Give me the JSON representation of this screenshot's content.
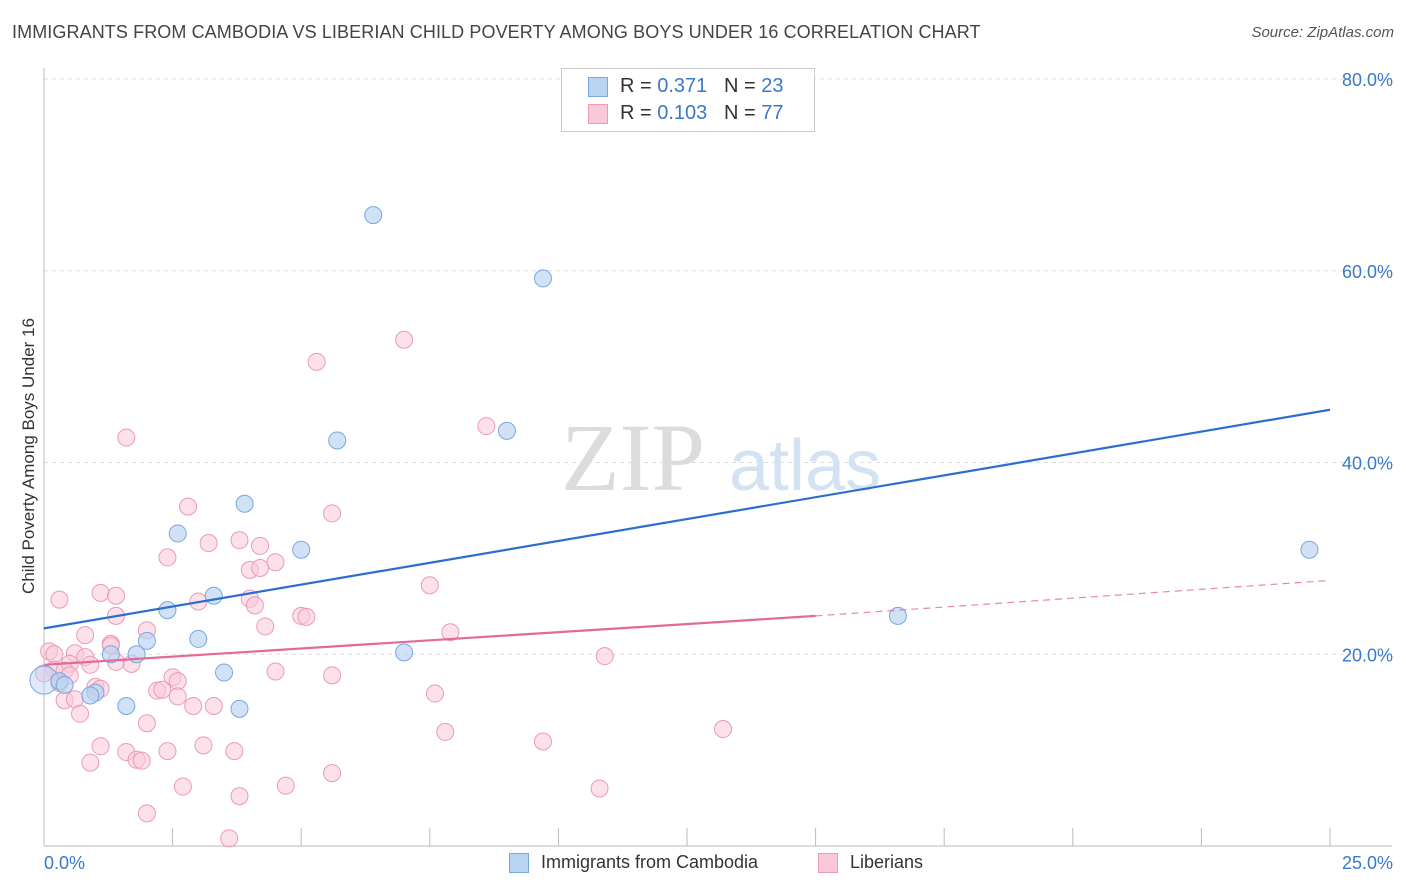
{
  "title": "IMMIGRANTS FROM CAMBODIA VS LIBERIAN CHILD POVERTY AMONG BOYS UNDER 16 CORRELATION CHART",
  "source": "Source: ZipAtlas.com",
  "watermark": {
    "zip": "ZIP",
    "atlas": "atlas"
  },
  "colors": {
    "blue_fill": "#b9d3f3",
    "blue_stroke": "#7aa7dd",
    "blue_line": "#2a6fcf",
    "pink_fill": "#f9c9d8",
    "pink_stroke": "#ec9ab5",
    "pink_line": "#e46a96",
    "tick_text": "#3a78c9"
  },
  "legend": {
    "rows": [
      {
        "r_label": "R = ",
        "r_value": "0.371",
        "n_label": "N = ",
        "n_value": "23"
      },
      {
        "r_label": "R = ",
        "r_value": "0.103",
        "n_label": "N = ",
        "n_value": "77"
      }
    ]
  },
  "bottom_legend": [
    "Immigrants from Cambodia",
    "Liberians"
  ],
  "chart_data": {
    "type": "scatter",
    "title": "IMMIGRANTS FROM CAMBODIA VS LIBERIAN CHILD POVERTY AMONG BOYS UNDER 16 CORRELATION CHART",
    "xlabel": "",
    "ylabel": "Child Poverty Among Boys Under 16",
    "xlim": [
      0,
      25
    ],
    "ylim": [
      0,
      80
    ],
    "x_tick_labels": [
      "0.0%",
      "25.0%"
    ],
    "y_ticks": [
      20,
      40,
      60,
      80
    ],
    "y_tick_labels": [
      "20.0%",
      "40.0%",
      "60.0%",
      "80.0%"
    ],
    "grid": "horizontal dashed",
    "legend_position": "top-center",
    "series": [
      {
        "name": "Immigrants from Cambodia",
        "points": [
          [
            6.4,
            65.8
          ],
          [
            9.7,
            59.2
          ],
          [
            5.7,
            42.3
          ],
          [
            9.0,
            43.3
          ],
          [
            3.9,
            35.7
          ],
          [
            2.6,
            32.6
          ],
          [
            5.0,
            30.9
          ],
          [
            24.6,
            30.9
          ],
          [
            3.3,
            26.1
          ],
          [
            2.4,
            24.6
          ],
          [
            16.6,
            24.0
          ],
          [
            2.0,
            21.4
          ],
          [
            3.0,
            21.6
          ],
          [
            7.0,
            20.2
          ],
          [
            1.3,
            20.0
          ],
          [
            1.8,
            20.0
          ],
          [
            3.5,
            18.1
          ],
          [
            0.3,
            17.2
          ],
          [
            0.4,
            16.8
          ],
          [
            1.0,
            16.0
          ],
          [
            0.9,
            15.7
          ],
          [
            1.6,
            14.6
          ],
          [
            3.8,
            14.3
          ]
        ],
        "trend": {
          "x": [
            0,
            25
          ],
          "y": [
            22.7,
            45.5
          ]
        }
      },
      {
        "name": "Liberians",
        "points": [
          [
            7.0,
            52.8
          ],
          [
            5.3,
            50.5
          ],
          [
            8.6,
            43.8
          ],
          [
            1.6,
            42.6
          ],
          [
            2.8,
            35.4
          ],
          [
            5.6,
            34.7
          ],
          [
            3.2,
            31.6
          ],
          [
            3.8,
            31.9
          ],
          [
            4.2,
            31.3
          ],
          [
            2.4,
            30.1
          ],
          [
            4.5,
            29.6
          ],
          [
            4.0,
            28.8
          ],
          [
            4.2,
            29.0
          ],
          [
            7.5,
            27.2
          ],
          [
            1.1,
            26.4
          ],
          [
            1.4,
            26.1
          ],
          [
            0.3,
            25.7
          ],
          [
            3.0,
            25.5
          ],
          [
            4.0,
            25.8
          ],
          [
            4.1,
            25.1
          ],
          [
            5.0,
            24.0
          ],
          [
            5.1,
            23.9
          ],
          [
            1.4,
            24.0
          ],
          [
            4.3,
            22.9
          ],
          [
            2.0,
            22.5
          ],
          [
            7.9,
            22.3
          ],
          [
            0.8,
            22.0
          ],
          [
            1.3,
            21.1
          ],
          [
            1.3,
            20.9
          ],
          [
            0.1,
            20.3
          ],
          [
            0.2,
            20.0
          ],
          [
            0.6,
            20.1
          ],
          [
            0.8,
            19.7
          ],
          [
            1.4,
            19.2
          ],
          [
            1.7,
            19.0
          ],
          [
            0.5,
            19.0
          ],
          [
            0.9,
            18.9
          ],
          [
            10.9,
            19.8
          ],
          [
            0.2,
            18.4
          ],
          [
            0.4,
            18.3
          ],
          [
            0.5,
            17.8
          ],
          [
            4.5,
            18.2
          ],
          [
            5.6,
            17.8
          ],
          [
            2.5,
            17.6
          ],
          [
            2.6,
            17.2
          ],
          [
            0.3,
            17.0
          ],
          [
            1.0,
            16.6
          ],
          [
            1.1,
            16.4
          ],
          [
            2.2,
            16.2
          ],
          [
            2.3,
            16.3
          ],
          [
            2.6,
            15.6
          ],
          [
            7.6,
            15.9
          ],
          [
            0.4,
            15.2
          ],
          [
            0.6,
            15.3
          ],
          [
            2.9,
            14.6
          ],
          [
            3.3,
            14.6
          ],
          [
            0.7,
            13.8
          ],
          [
            2.0,
            12.8
          ],
          [
            7.8,
            11.9
          ],
          [
            13.2,
            12.2
          ],
          [
            9.7,
            10.9
          ],
          [
            1.1,
            10.4
          ],
          [
            3.1,
            10.5
          ],
          [
            1.6,
            9.8
          ],
          [
            2.4,
            9.9
          ],
          [
            3.7,
            9.9
          ],
          [
            0.9,
            8.7
          ],
          [
            1.8,
            9.0
          ],
          [
            1.9,
            8.9
          ],
          [
            5.6,
            7.6
          ],
          [
            2.7,
            6.2
          ],
          [
            4.7,
            6.3
          ],
          [
            10.8,
            6.0
          ],
          [
            3.8,
            5.2
          ],
          [
            2.0,
            3.4
          ],
          [
            3.6,
            0.8
          ],
          [
            0.0,
            18.0
          ]
        ],
        "trend": {
          "x": [
            0,
            15
          ],
          "y": [
            18.9,
            24.0
          ]
        },
        "trend_extension": {
          "x": [
            15,
            25
          ],
          "y": [
            24.0,
            27.7
          ]
        }
      }
    ]
  }
}
